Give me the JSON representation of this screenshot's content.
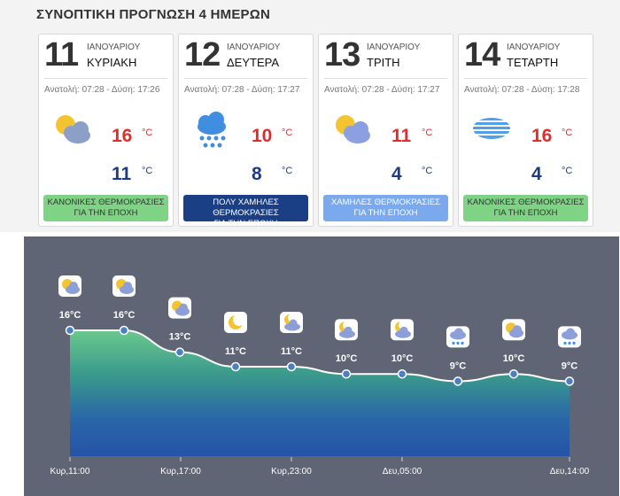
{
  "title": "ΣΥΝΟΠΤΙΚΗ ΠΡΟΓΝΩΣΗ 4 ΗΜΕΡΩΝ",
  "days": [
    {
      "day": "11",
      "month": "ΙΑΝΟΥΑΡΙΟΥ",
      "weekday": "ΚΥΡΙΑΚΗ",
      "sun": "Ανατολή: 07:28 - Δύση: 17:26",
      "icon": "partly-cloudy-icon",
      "max": "16",
      "min": "11",
      "unit": "°C",
      "badge1": "ΚΑΝΟΝΙΚΕΣ ΘΕΡΜΟΚΡΑΣΙΕΣ",
      "badge2": "ΓΙΑ ΤΗΝ ΕΠΟΧΗ",
      "badge_type": "normal"
    },
    {
      "day": "12",
      "month": "ΙΑΝΟΥΑΡΙΟΥ",
      "weekday": "ΔΕΥΤΕΡΑ",
      "sun": "Ανατολή: 07:28 - Δύση: 17:27",
      "icon": "rain-cloud-icon",
      "max": "10",
      "min": "8",
      "unit": "°C",
      "badge1": "ΠΟΛΥ ΧΑΜΗΛΕΣ ΘΕΡΜΟΚΡΑΣΙΕΣ",
      "badge2": "ΓΙΑ ΤΗΝ ΕΠΟΧΗ",
      "badge_type": "very-low"
    },
    {
      "day": "13",
      "month": "ΙΑΝΟΥΑΡΙΟΥ",
      "weekday": "ΤΡΙΤΗ",
      "sun": "Ανατολή: 07:28 - Δύση: 17:27",
      "icon": "partly-cloudy-icon",
      "max": "11",
      "min": "4",
      "unit": "°C",
      "badge1": "ΧΑΜΗΛΕΣ ΘΕΡΜΟΚΡΑΣΙΕΣ",
      "badge2": "ΓΙΑ ΤΗΝ ΕΠΟΧΗ",
      "badge_type": "low"
    },
    {
      "day": "14",
      "month": "ΙΑΝΟΥΑΡΙΟΥ",
      "weekday": "ΤΕΤΑΡΤΗ",
      "sun": "Ανατολή: 07:28 - Δύση: 17:28",
      "icon": "fog-icon",
      "max": "16",
      "min": "4",
      "unit": "°C",
      "badge1": "ΚΑΝΟΝΙΚΕΣ ΘΕΡΜΟΚΡΑΣΙΕΣ",
      "badge2": "ΓΙΑ ΤΗΝ ΕΠΟΧΗ",
      "badge_type": "normal"
    }
  ],
  "colors": {
    "max": "#e32b2b",
    "min": "#1c3c8a",
    "normal": "#7ed384",
    "very_low": "#1a3f85",
    "low": "#7aa9ee",
    "panel": "#5f6574"
  },
  "hourly": {
    "points": [
      {
        "label": "16°C",
        "value": 16,
        "icon": "partly-cloudy-icon"
      },
      {
        "label": "16°C",
        "value": 16,
        "icon": "partly-cloudy-icon"
      },
      {
        "label": "13°C",
        "value": 13,
        "icon": "partly-cloudy-icon"
      },
      {
        "label": "11°C",
        "value": 11,
        "icon": "moon-icon"
      },
      {
        "label": "11°C",
        "value": 11,
        "icon": "moon-cloud-icon"
      },
      {
        "label": "10°C",
        "value": 10,
        "icon": "moon-cloud-icon"
      },
      {
        "label": "10°C",
        "value": 10,
        "icon": "moon-cloud-icon"
      },
      {
        "label": "9°C",
        "value": 9,
        "icon": "rain-cloud-icon"
      },
      {
        "label": "10°C",
        "value": 10,
        "icon": "partly-cloudy-icon"
      },
      {
        "label": "9°C",
        "value": 9,
        "icon": "rain-cloud-icon"
      }
    ],
    "x_labels": [
      "Κυρ,11:00",
      "Κυρ,17:00",
      "Κυρ,23:00",
      "Δευ,05:00",
      "Δευ,14:00"
    ]
  }
}
